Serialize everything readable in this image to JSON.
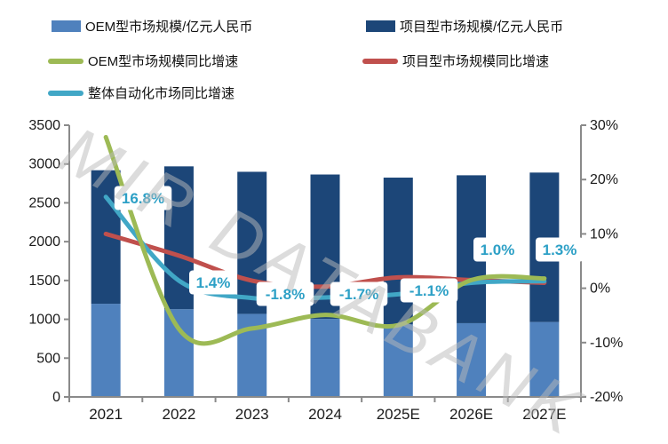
{
  "watermark": "MIR DATABANK",
  "legend": {
    "items": [
      {
        "label": "OEM型市场规模/亿元人民币",
        "type": "bar",
        "color": "#4f81bd"
      },
      {
        "label": "项目型市场规模/亿元人民币",
        "type": "bar",
        "color": "#1c4678"
      },
      {
        "label": "OEM型市场规模同比增速",
        "type": "line",
        "color": "#9dba55"
      },
      {
        "label": "项目型市场规模同比增速",
        "type": "line",
        "color": "#c0504d"
      },
      {
        "label": "整体自动化市场同比增速",
        "type": "line",
        "color": "#41a7c6"
      }
    ]
  },
  "chart_data": {
    "type": "combo-stacked-bar-line",
    "categories": [
      "2021",
      "2022",
      "2023",
      "2024",
      "2025E",
      "2026E",
      "2027E"
    ],
    "bar_series": [
      {
        "name": "OEM型市场规模/亿元人民币",
        "color": "#4f81bd",
        "axis": "left",
        "values": [
          1200,
          1130,
          1070,
          1005,
          935,
          950,
          965
        ]
      },
      {
        "name": "项目型市场规模/亿元人民币",
        "color": "#1c4678",
        "axis": "left",
        "stacked_on": "OEM型市场规模/亿元人民币",
        "values": [
          1720,
          1840,
          1830,
          1860,
          1890,
          1905,
          1925
        ]
      }
    ],
    "bar_totals": [
      2920,
      2970,
      2900,
      2865,
      2825,
      2855,
      2890
    ],
    "line_series": [
      {
        "name": "项目型市场规模同比增速",
        "color": "#c0504d",
        "axis": "right",
        "values_pct": [
          10.0,
          6.0,
          1.4,
          0.3,
          2.0,
          1.5,
          1.0
        ]
      },
      {
        "name": "整体自动化市场同比增速",
        "color": "#41a7c6",
        "axis": "right",
        "values_pct": [
          16.8,
          1.4,
          -1.8,
          -1.7,
          -1.1,
          1.0,
          1.3
        ]
      },
      {
        "name": "OEM型市场规模同比增速",
        "color": "#9dba55",
        "axis": "right",
        "values_pct": [
          27.8,
          -7.5,
          -7.4,
          -4.9,
          -6.8,
          1.5,
          1.8
        ]
      }
    ],
    "point_labels": {
      "series": "整体自动化市场同比增速",
      "values": [
        "16.8%",
        "1.4%",
        "-1.8%",
        "-1.7%",
        "-1.1%",
        "1.0%",
        "1.3%"
      ],
      "text_color": "#2da0c6",
      "box_color": "#ffffff"
    },
    "left_axis": {
      "ticks": [
        "3500",
        "3000",
        "2500",
        "2000",
        "1500",
        "1000",
        "500",
        "0"
      ],
      "min": 0,
      "max": 3500
    },
    "right_axis": {
      "ticks": [
        "30%",
        "20%",
        "10%",
        "0%",
        "-10%",
        "-20%"
      ],
      "min": -20,
      "max": 30
    },
    "axis_color": "#8a8a8a",
    "tick_text_color": "#1a1a1a",
    "grid": false,
    "legend_position": "top"
  }
}
